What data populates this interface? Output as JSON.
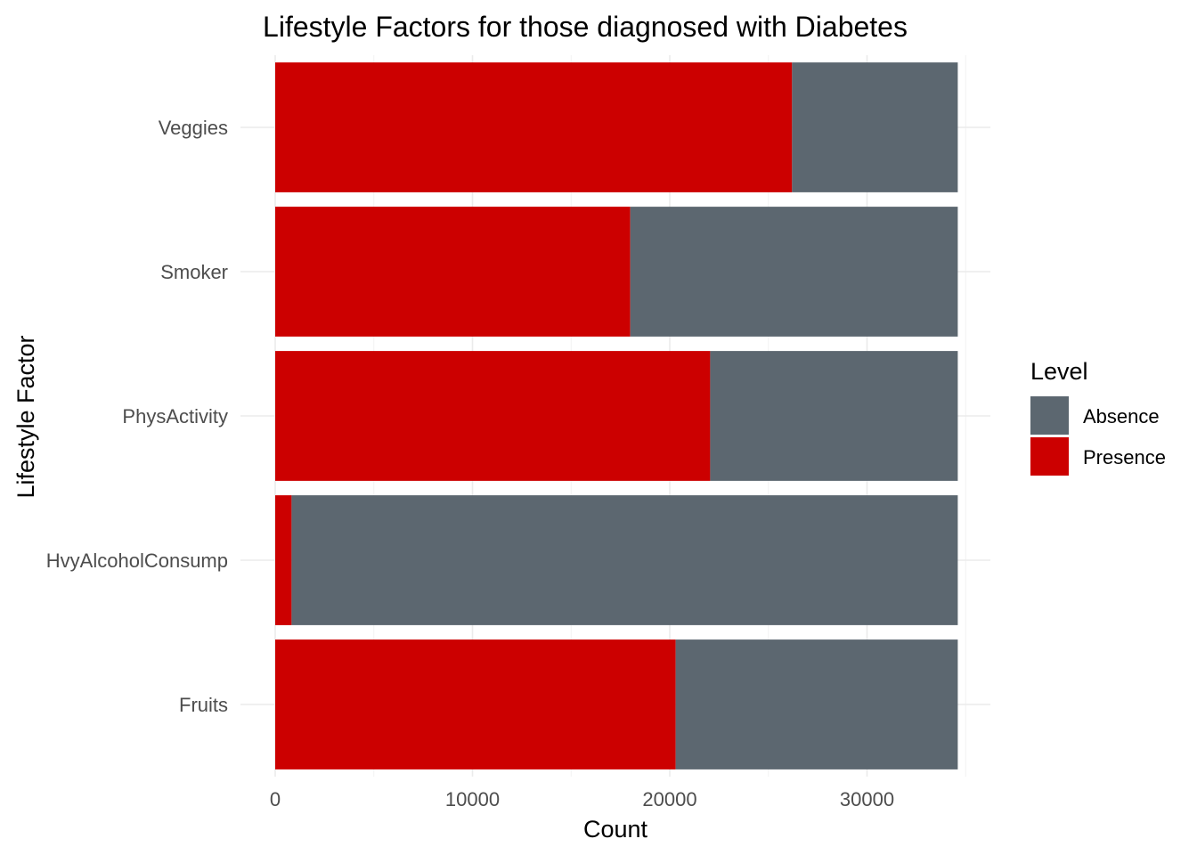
{
  "chart_data": {
    "type": "bar",
    "orientation": "horizontal",
    "stacked": true,
    "title": "Lifestyle Factors for those diagnosed with Diabetes",
    "xlabel": "Count",
    "ylabel": "Lifestyle Factor",
    "categories": [
      "Fruits",
      "HvyAlcoholConsump",
      "PhysActivity",
      "Smoker",
      "Veggies"
    ],
    "series": [
      {
        "name": "Presence",
        "color": "#CC0000",
        "values": [
          20300,
          830,
          22050,
          18000,
          26200
        ]
      },
      {
        "name": "Absence",
        "color": "#5C6770",
        "values": [
          14300,
          33770,
          12550,
          16600,
          8400
        ]
      }
    ],
    "xlim": [
      0,
      36000
    ],
    "xticks": [
      0,
      10000,
      20000,
      30000
    ],
    "xtick_labels": [
      "0",
      "10000",
      "20000",
      "30000"
    ],
    "grid": true,
    "legend": {
      "title": "Level",
      "placement": "right",
      "items": [
        {
          "label": "Absence",
          "color": "#5C6770"
        },
        {
          "label": "Presence",
          "color": "#CC0000"
        }
      ]
    }
  }
}
